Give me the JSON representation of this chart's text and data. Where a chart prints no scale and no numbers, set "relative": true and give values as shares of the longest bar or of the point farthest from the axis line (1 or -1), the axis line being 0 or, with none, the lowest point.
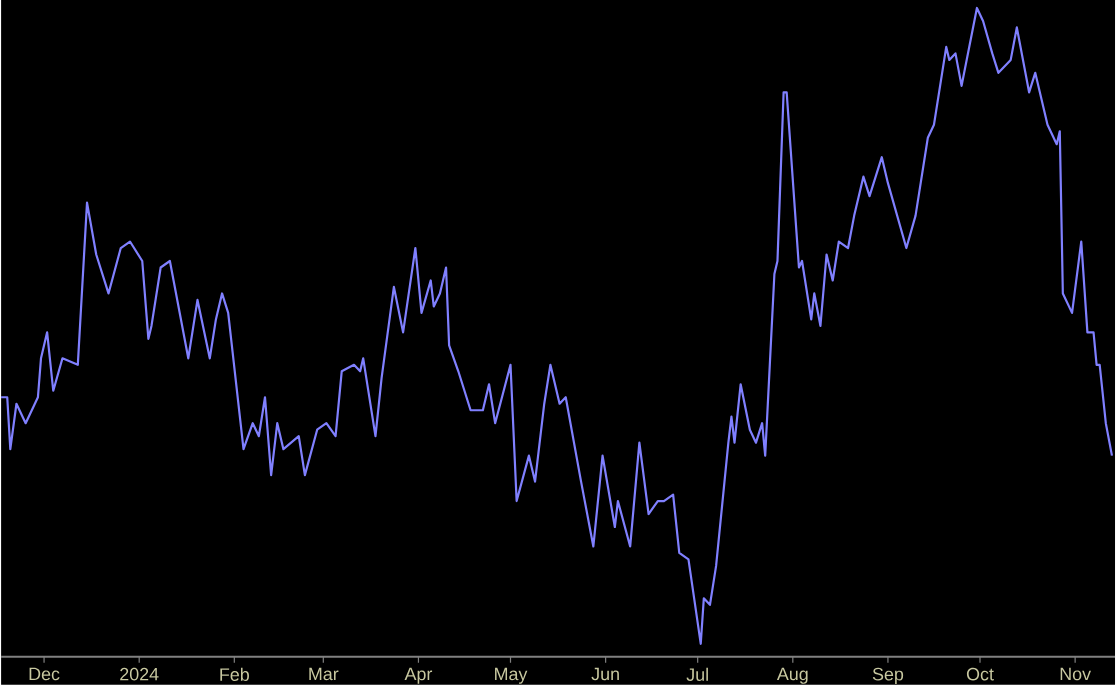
{
  "chart_data": {
    "type": "line",
    "relative": true,
    "grid": false,
    "marker": "none",
    "line_style": "solid",
    "xlim": [
      "2023-11-17",
      "2024-11-14"
    ],
    "xticks": [
      {
        "value": "2023-12-01",
        "label": "Dec"
      },
      {
        "value": "2024-01-01",
        "label": "2024"
      },
      {
        "value": "2024-02-01",
        "label": "Feb"
      },
      {
        "value": "2024-03-01",
        "label": "Mar"
      },
      {
        "value": "2024-04-01",
        "label": "Apr"
      },
      {
        "value": "2024-05-01",
        "label": "May"
      },
      {
        "value": "2024-06-01",
        "label": "Jun"
      },
      {
        "value": "2024-07-01",
        "label": "Jul"
      },
      {
        "value": "2024-08-01",
        "label": "Aug"
      },
      {
        "value": "2024-09-01",
        "label": "Sep"
      },
      {
        "value": "2024-10-01",
        "label": "Oct"
      },
      {
        "value": "2024-11-01",
        "label": "Nov"
      }
    ],
    "x": [
      "2023-11-17",
      "2023-11-19",
      "2023-11-20",
      "2023-11-22",
      "2023-11-25",
      "2023-11-29",
      "2023-11-30",
      "2023-12-02",
      "2023-12-04",
      "2023-12-07",
      "2023-12-12",
      "2023-12-15",
      "2023-12-18",
      "2023-12-22",
      "2023-12-26",
      "2023-12-29",
      "2024-01-02",
      "2024-01-04",
      "2024-01-05",
      "2024-01-08",
      "2024-01-11",
      "2024-01-17",
      "2024-01-20",
      "2024-01-24",
      "2024-01-26",
      "2024-01-28",
      "2024-01-30",
      "2024-02-04",
      "2024-02-07",
      "2024-02-09",
      "2024-02-11",
      "2024-02-13",
      "2024-02-15",
      "2024-02-17",
      "2024-02-22",
      "2024-02-24",
      "2024-02-28",
      "2024-03-02",
      "2024-03-05",
      "2024-03-07",
      "2024-03-11",
      "2024-03-13",
      "2024-03-14",
      "2024-03-18",
      "2024-03-20",
      "2024-03-24",
      "2024-03-27",
      "2024-03-31",
      "2024-04-02",
      "2024-04-05",
      "2024-04-06",
      "2024-04-08",
      "2024-04-10",
      "2024-04-11",
      "2024-04-14",
      "2024-04-18",
      "2024-04-22",
      "2024-04-24",
      "2024-04-26",
      "2024-05-01",
      "2024-05-03",
      "2024-05-07",
      "2024-05-09",
      "2024-05-12",
      "2024-05-14",
      "2024-05-17",
      "2024-05-19",
      "2024-05-24",
      "2024-05-28",
      "2024-05-31",
      "2024-06-04",
      "2024-06-05",
      "2024-06-09",
      "2024-06-12",
      "2024-06-15",
      "2024-06-18",
      "2024-06-20",
      "2024-06-23",
      "2024-06-25",
      "2024-06-28",
      "2024-07-02",
      "2024-07-03",
      "2024-07-05",
      "2024-07-07",
      "2024-07-11",
      "2024-07-12",
      "2024-07-13",
      "2024-07-15",
      "2024-07-18",
      "2024-07-20",
      "2024-07-22",
      "2024-07-23",
      "2024-07-26",
      "2024-07-27",
      "2024-07-29",
      "2024-07-30",
      "2024-08-03",
      "2024-08-04",
      "2024-08-07",
      "2024-08-08",
      "2024-08-10",
      "2024-08-12",
      "2024-08-14",
      "2024-08-16",
      "2024-08-19",
      "2024-08-21",
      "2024-08-23",
      "2024-08-24",
      "2024-08-26",
      "2024-08-30",
      "2024-09-01",
      "2024-09-07",
      "2024-09-10",
      "2024-09-14",
      "2024-09-16",
      "2024-09-20",
      "2024-09-21",
      "2024-09-23",
      "2024-09-25",
      "2024-09-30",
      "2024-10-02",
      "2024-10-05",
      "2024-10-07",
      "2024-10-11",
      "2024-10-13",
      "2024-10-17",
      "2024-10-19",
      "2024-10-23",
      "2024-10-26",
      "2024-10-27",
      "2024-10-28",
      "2024-10-31",
      "2024-11-03",
      "2024-11-05",
      "2024-11-07",
      "2024-11-08",
      "2024-11-09",
      "2024-11-11",
      "2024-11-13"
    ],
    "series": [
      {
        "color": "#8080ff",
        "values": [
          0.4,
          0.4,
          0.32,
          0.39,
          0.36,
          0.4,
          0.46,
          0.5,
          0.41,
          0.46,
          0.45,
          0.7,
          0.62,
          0.56,
          0.63,
          0.64,
          0.61,
          0.49,
          0.51,
          0.6,
          0.61,
          0.46,
          0.55,
          0.46,
          0.52,
          0.56,
          0.53,
          0.32,
          0.36,
          0.34,
          0.4,
          0.28,
          0.36,
          0.32,
          0.34,
          0.28,
          0.35,
          0.36,
          0.34,
          0.44,
          0.45,
          0.44,
          0.46,
          0.34,
          0.43,
          0.57,
          0.5,
          0.63,
          0.53,
          0.58,
          0.54,
          0.56,
          0.6,
          0.48,
          0.44,
          0.38,
          0.38,
          0.42,
          0.36,
          0.45,
          0.24,
          0.31,
          0.27,
          0.39,
          0.45,
          0.39,
          0.4,
          0.27,
          0.17,
          0.31,
          0.2,
          0.24,
          0.17,
          0.33,
          0.22,
          0.24,
          0.24,
          0.25,
          0.16,
          0.15,
          0.02,
          0.09,
          0.08,
          0.14,
          0.33,
          0.37,
          0.33,
          0.42,
          0.35,
          0.33,
          0.36,
          0.31,
          0.59,
          0.61,
          0.87,
          0.87,
          0.6,
          0.61,
          0.52,
          0.56,
          0.51,
          0.62,
          0.58,
          0.64,
          0.63,
          0.68,
          0.72,
          0.74,
          0.71,
          0.77,
          0.73,
          0.63,
          0.68,
          0.8,
          0.82,
          0.94,
          0.92,
          0.93,
          0.88,
          1.0,
          0.98,
          0.93,
          0.9,
          0.92,
          0.97,
          0.87,
          0.9,
          0.82,
          0.79,
          0.81,
          0.56,
          0.53,
          0.64,
          0.5,
          0.5,
          0.45,
          0.45,
          0.36,
          0.31
        ]
      }
    ]
  }
}
